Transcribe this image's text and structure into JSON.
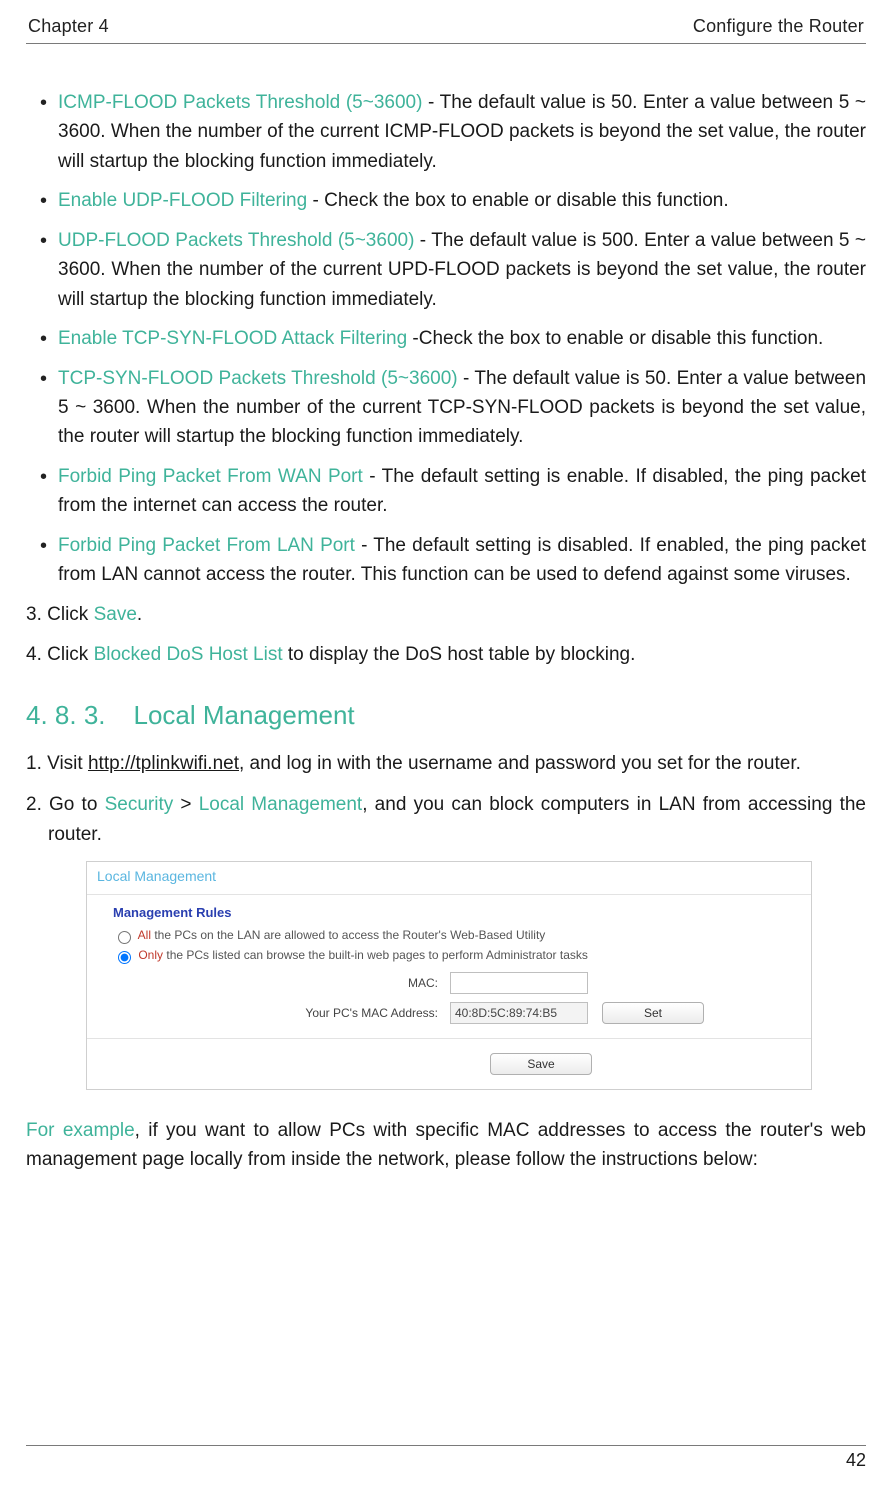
{
  "header": {
    "left": "Chapter 4",
    "right": "Configure the Router"
  },
  "bullets": [
    {
      "term": "ICMP-FLOOD Packets Threshold (5~3600)",
      "sep": " - ",
      "text": "The default value is 50. Enter a value between 5 ~ 3600. When the number of the current ICMP-FLOOD packets is beyond the set value, the router will startup the blocking function immediately."
    },
    {
      "term": "Enable UDP-FLOOD Filtering",
      "sep": " - ",
      "text": "Check the box to enable or disable this function."
    },
    {
      "term": "UDP-FLOOD Packets Threshold (5~3600)",
      "sep": " - ",
      "text": "The default value is 500. Enter a value between 5 ~ 3600. When the number of the current UPD-FLOOD packets is beyond the set value, the router will startup the blocking function immediately."
    },
    {
      "term": "Enable TCP-SYN-FLOOD Attack Filtering",
      "sep": " -",
      "text": "Check the box to enable or disable this function."
    },
    {
      "term": "TCP-SYN-FLOOD Packets Threshold (5~3600)",
      "sep": " - ",
      "text": "The default value is 50. Enter a value between 5 ~ 3600. When the number of the current TCP-SYN-FLOOD packets is beyond the set value, the router will startup the blocking function immediately."
    },
    {
      "term": "Forbid Ping Packet From WAN Port",
      "sep": " - ",
      "text": "The default setting is enable. If disabled, the ping packet from the internet can access the router."
    },
    {
      "term": "Forbid Ping Packet From LAN Port",
      "sep": " - ",
      "text": "The default setting is disabled. If enabled, the ping packet from LAN cannot access the router. This function can be used to defend against some viruses."
    }
  ],
  "step3": {
    "pre": "3. Click ",
    "link": "Save",
    "post": "."
  },
  "step4": {
    "pre": "4. Click ",
    "link": "Blocked DoS Host List",
    "post": " to display the DoS host table by blocking."
  },
  "section": {
    "num": "4. 8. 3.",
    "title": "Local Management"
  },
  "lm_step1": {
    "pre": "1. Visit ",
    "url": "http://tplinkwifi.net",
    "post": ", and log in with the username and password you set for the router."
  },
  "lm_step2": {
    "pre": "2. Go to ",
    "a": "Security",
    "gt": " > ",
    "b": "Local Management",
    "post": ", and you can block computers in LAN from accessing the router."
  },
  "panel": {
    "title": "Local Management",
    "rules_label": "Management Rules",
    "opt_all": {
      "red": "All",
      "rest": " the PCs on the LAN are allowed to access the Router's Web-Based Utility"
    },
    "opt_only": {
      "red": "Only",
      "rest": " the PCs listed can browse the built-in web pages to perform Administrator tasks"
    },
    "mac_label": "MAC:",
    "mac_value": "",
    "yourmac_label": "Your PC's MAC Address:",
    "yourmac_value": "40:8D:5C:89:74:B5",
    "set_btn": "Set",
    "save_btn": "Save"
  },
  "example": {
    "lead": "For example",
    "text": ", if you want to allow PCs with specific MAC addresses to access the router's web management page locally from inside the network, please follow the instructions below:"
  },
  "page_number": "42"
}
